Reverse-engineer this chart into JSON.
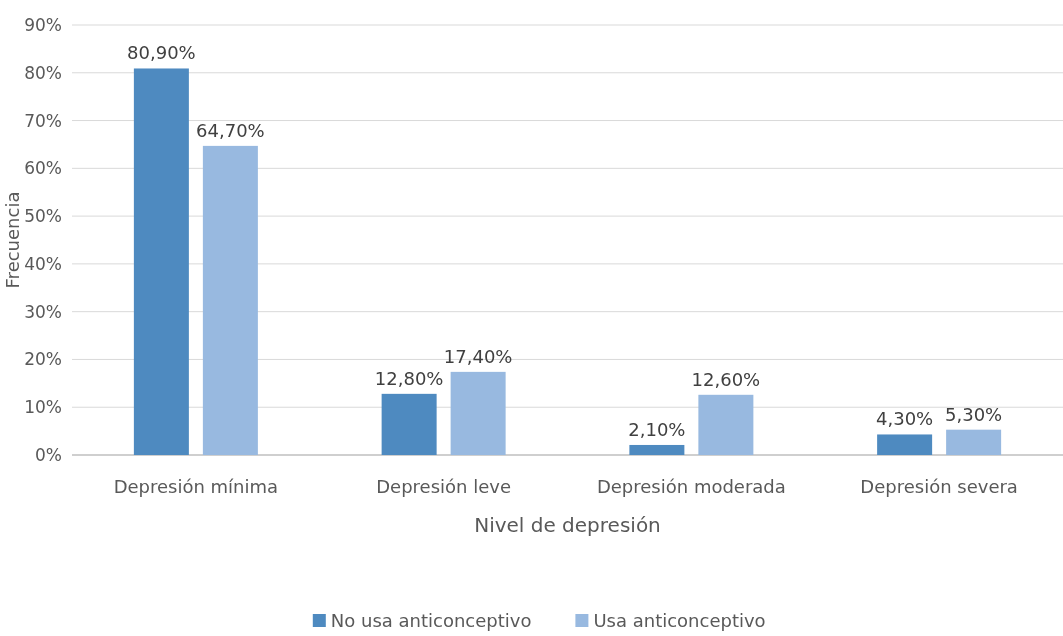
{
  "chart_data": {
    "type": "bar",
    "xlabel": "Nivel de depresión",
    "ylabel": "Frecuencia",
    "categories": [
      "Depresión mínima",
      "Depresión leve",
      "Depresión moderada",
      "Depresión severa"
    ],
    "series": [
      {
        "name": "No usa anticonceptivo",
        "color": "#4e8ac0",
        "values": [
          80.9,
          12.8,
          2.1,
          4.3
        ],
        "value_labels": [
          "80,90%",
          "12,80%",
          "2,10%",
          "4,30%"
        ]
      },
      {
        "name": "Usa anticonceptivo",
        "color": "#98b9e0",
        "values": [
          64.7,
          17.4,
          12.6,
          5.3
        ],
        "value_labels": [
          "64,70%",
          "17,40%",
          "12,60%",
          "5,30%"
        ]
      }
    ],
    "ylim": [
      0,
      90
    ],
    "yticks": [
      {
        "value": 0,
        "label": "0%"
      },
      {
        "value": 10,
        "label": "10%"
      },
      {
        "value": 20,
        "label": "20%"
      },
      {
        "value": 30,
        "label": "30%"
      },
      {
        "value": 40,
        "label": "40%"
      },
      {
        "value": 50,
        "label": "50%"
      },
      {
        "value": 60,
        "label": "60%"
      },
      {
        "value": 70,
        "label": "70%"
      },
      {
        "value": 80,
        "label": "80%"
      },
      {
        "value": 90,
        "label": "90%"
      }
    ],
    "grid": "y",
    "legend": "bottom"
  }
}
